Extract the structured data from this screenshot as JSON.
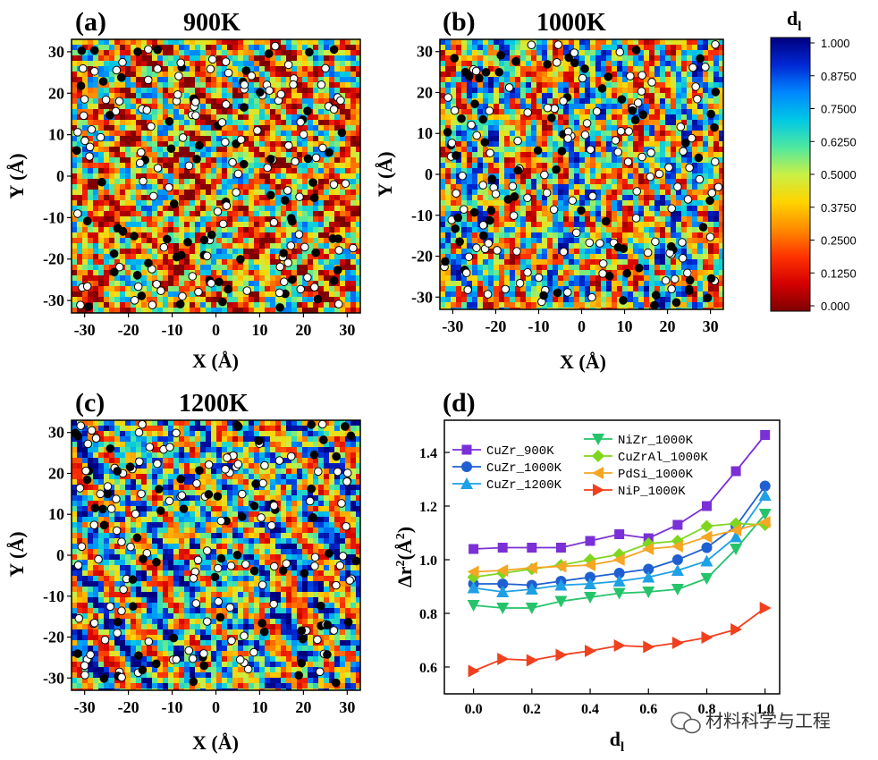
{
  "colorbar": {
    "title": "d",
    "title_sub": "l",
    "ticks": [
      "1.000",
      "0.8750",
      "0.7500",
      "0.6250",
      "0.5000",
      "0.3750",
      "0.2500",
      "0.1250",
      "0.000"
    ],
    "colors": [
      "#7f0000",
      "#d40000",
      "#ff3300",
      "#ff8c00",
      "#ffd400",
      "#c8f046",
      "#4de8a0",
      "#00c8e6",
      "#0086ff",
      "#0028d4",
      "#00007f"
    ]
  },
  "watermark": "材料科学与工程",
  "chart_data": [
    {
      "type": "heatmap",
      "panel": "(a)",
      "title": "900K",
      "xlabel": "X (Å)",
      "ylabel": "Y (Å)",
      "xticks": [
        "-30",
        "-20",
        "-10",
        "0",
        "10",
        "20",
        "30"
      ],
      "yticks": [
        "30",
        "20",
        "10",
        "0",
        "-10",
        "-20",
        "-30"
      ],
      "xlim": [
        -33,
        33
      ],
      "ylim": [
        -33,
        33
      ],
      "seed": 11,
      "bias": -0.12
    },
    {
      "type": "heatmap",
      "panel": "(b)",
      "title": "1000K",
      "xlabel": "X (Å)",
      "ylabel": "Y (Å)",
      "xticks": [
        "-30",
        "-20",
        "-10",
        "0",
        "10",
        "20",
        "30"
      ],
      "yticks": [
        "30",
        "20",
        "10",
        "0",
        "-10",
        "-20",
        "-30"
      ],
      "xlim": [
        -33,
        33
      ],
      "ylim": [
        -33,
        33
      ],
      "seed": 23,
      "bias": 0.0
    },
    {
      "type": "heatmap",
      "panel": "(c)",
      "title": "1200K",
      "xlabel": "X (Å)",
      "ylabel": "Y (Å)",
      "xticks": [
        "-30",
        "-20",
        "-10",
        "0",
        "10",
        "20",
        "30"
      ],
      "yticks": [
        "30",
        "20",
        "10",
        "0",
        "-10",
        "-20",
        "-30"
      ],
      "xlim": [
        -33,
        33
      ],
      "ylim": [
        -33,
        33
      ],
      "seed": 37,
      "bias": 0.06
    },
    {
      "type": "line",
      "panel": "(d)",
      "xlabel": "d",
      "xlabel_sub": "l",
      "ylabel": "Δr",
      "ylabel_sup": "2",
      "ylabel_unit": "(Å",
      "ylabel_unit_sup": "2",
      "ylabel_close": ")",
      "xlim": [
        -0.1,
        1.05
      ],
      "ylim": [
        0.5,
        1.52
      ],
      "xticks": [
        "0.0",
        "0.2",
        "0.4",
        "0.6",
        "0.8",
        "1.0"
      ],
      "yticks": [
        "0.6",
        "0.8",
        "1.0",
        "1.2",
        "1.4"
      ],
      "x": [
        0.0,
        0.1,
        0.2,
        0.3,
        0.4,
        0.5,
        0.6,
        0.7,
        0.8,
        0.9,
        1.0
      ],
      "series": [
        {
          "name": "CuZr_900K",
          "color": "#7b2fd6",
          "marker": "square",
          "values": [
            1.04,
            1.045,
            1.045,
            1.045,
            1.07,
            1.095,
            1.08,
            1.13,
            1.2,
            1.33,
            1.465
          ]
        },
        {
          "name": "CuZr_1000K",
          "color": "#1f5fd1",
          "marker": "circle",
          "values": [
            0.91,
            0.91,
            0.905,
            0.92,
            0.935,
            0.95,
            0.965,
            1.0,
            1.045,
            1.125,
            1.275
          ]
        },
        {
          "name": "CuZr_1200K",
          "color": "#1ea0e6",
          "marker": "triUp",
          "values": [
            0.895,
            0.88,
            0.89,
            0.905,
            0.91,
            0.92,
            0.935,
            0.96,
            0.995,
            1.085,
            1.24
          ]
        },
        {
          "name": "NiZr_1000K",
          "color": "#25c46b",
          "marker": "triDown",
          "values": [
            0.83,
            0.82,
            0.82,
            0.845,
            0.86,
            0.875,
            0.88,
            0.89,
            0.93,
            1.04,
            1.17
          ]
        },
        {
          "name": "CuZrAl_1000K",
          "color": "#7fd61f",
          "marker": "diamond",
          "values": [
            0.935,
            0.95,
            0.965,
            0.98,
            1.0,
            1.02,
            1.06,
            1.07,
            1.125,
            1.135,
            1.13
          ]
        },
        {
          "name": "PdSi_1000K",
          "color": "#f5a623",
          "marker": "triLeft",
          "values": [
            0.955,
            0.96,
            0.97,
            0.975,
            0.98,
            1.0,
            1.04,
            1.05,
            1.085,
            1.11,
            1.14
          ]
        },
        {
          "name": "NiP_1000K",
          "color": "#f0401e",
          "marker": "triRight",
          "values": [
            0.585,
            0.63,
            0.625,
            0.645,
            0.66,
            0.68,
            0.675,
            0.69,
            0.71,
            0.74,
            0.82
          ]
        }
      ]
    }
  ]
}
